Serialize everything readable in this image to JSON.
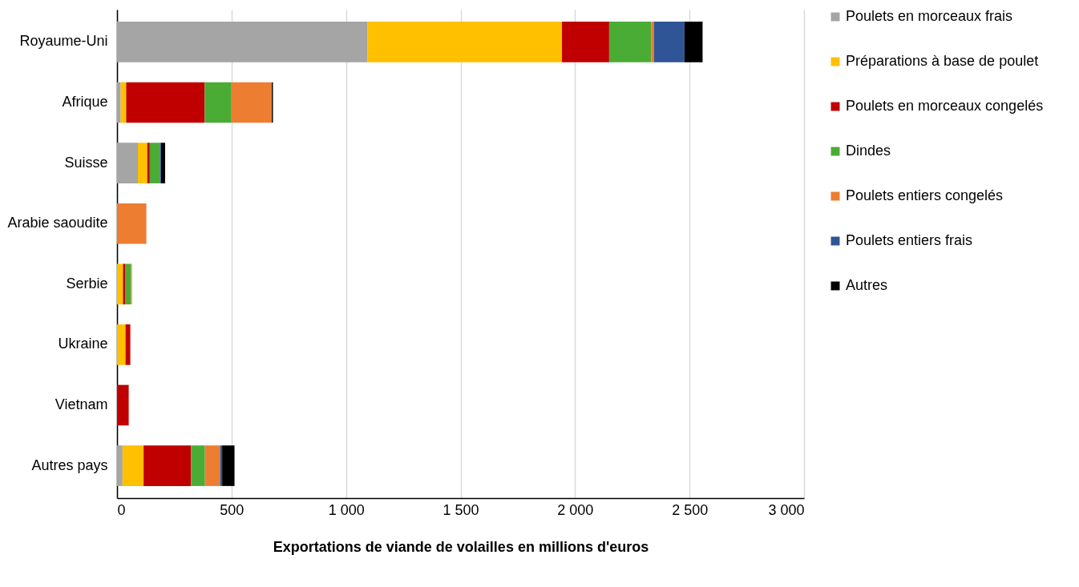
{
  "chart_data": {
    "type": "bar",
    "orientation": "horizontal",
    "stacked": true,
    "xlabel": "Exportations de viande de volailles en millions d'euros",
    "categories": [
      "Royaume-Uni",
      "Afrique",
      "Suisse",
      "Arabie saoudite",
      "Serbie",
      "Ukraine",
      "Vietnam",
      "Autres pays"
    ],
    "series": [
      {
        "name": "Poulets en morceaux frais",
        "color": "#a5a5a5",
        "values": [
          1094,
          16,
          91,
          0,
          0,
          0,
          0,
          24
        ]
      },
      {
        "name": "Préparations à base de poulet",
        "color": "#ffc000",
        "values": [
          849,
          24,
          41,
          0,
          26,
          37,
          0,
          92
        ]
      },
      {
        "name": "Poulets en morceaux congelés",
        "color": "#c00000",
        "values": [
          206,
          343,
          11,
          0,
          11,
          21,
          51,
          207
        ]
      },
      {
        "name": "Dindes",
        "color": "#4aac35",
        "values": [
          183,
          117,
          44,
          0,
          24,
          0,
          0,
          61
        ]
      },
      {
        "name": "Poulets entiers congelés",
        "color": "#ed7d31",
        "values": [
          12,
          176,
          0,
          128,
          4,
          0,
          0,
          66
        ]
      },
      {
        "name": "Poulets entiers frais",
        "color": "#2f5597",
        "values": [
          134,
          0,
          5,
          0,
          0,
          0,
          0,
          9
        ]
      },
      {
        "name": "Autres",
        "color": "#000000",
        "values": [
          79,
          5,
          18,
          0,
          0,
          0,
          0,
          54
        ]
      }
    ],
    "xlim": [
      0,
      3000
    ],
    "xticks": [
      0,
      500,
      {
        "value": 1000,
        "label": "1 000"
      },
      {
        "value": 1500,
        "label": "1 500"
      },
      {
        "value": 2000,
        "label": "2 000"
      },
      {
        "value": 2500,
        "label": "2 500"
      },
      {
        "value": 3000,
        "label": "3 000"
      }
    ],
    "grid": "x",
    "legend": "right"
  }
}
